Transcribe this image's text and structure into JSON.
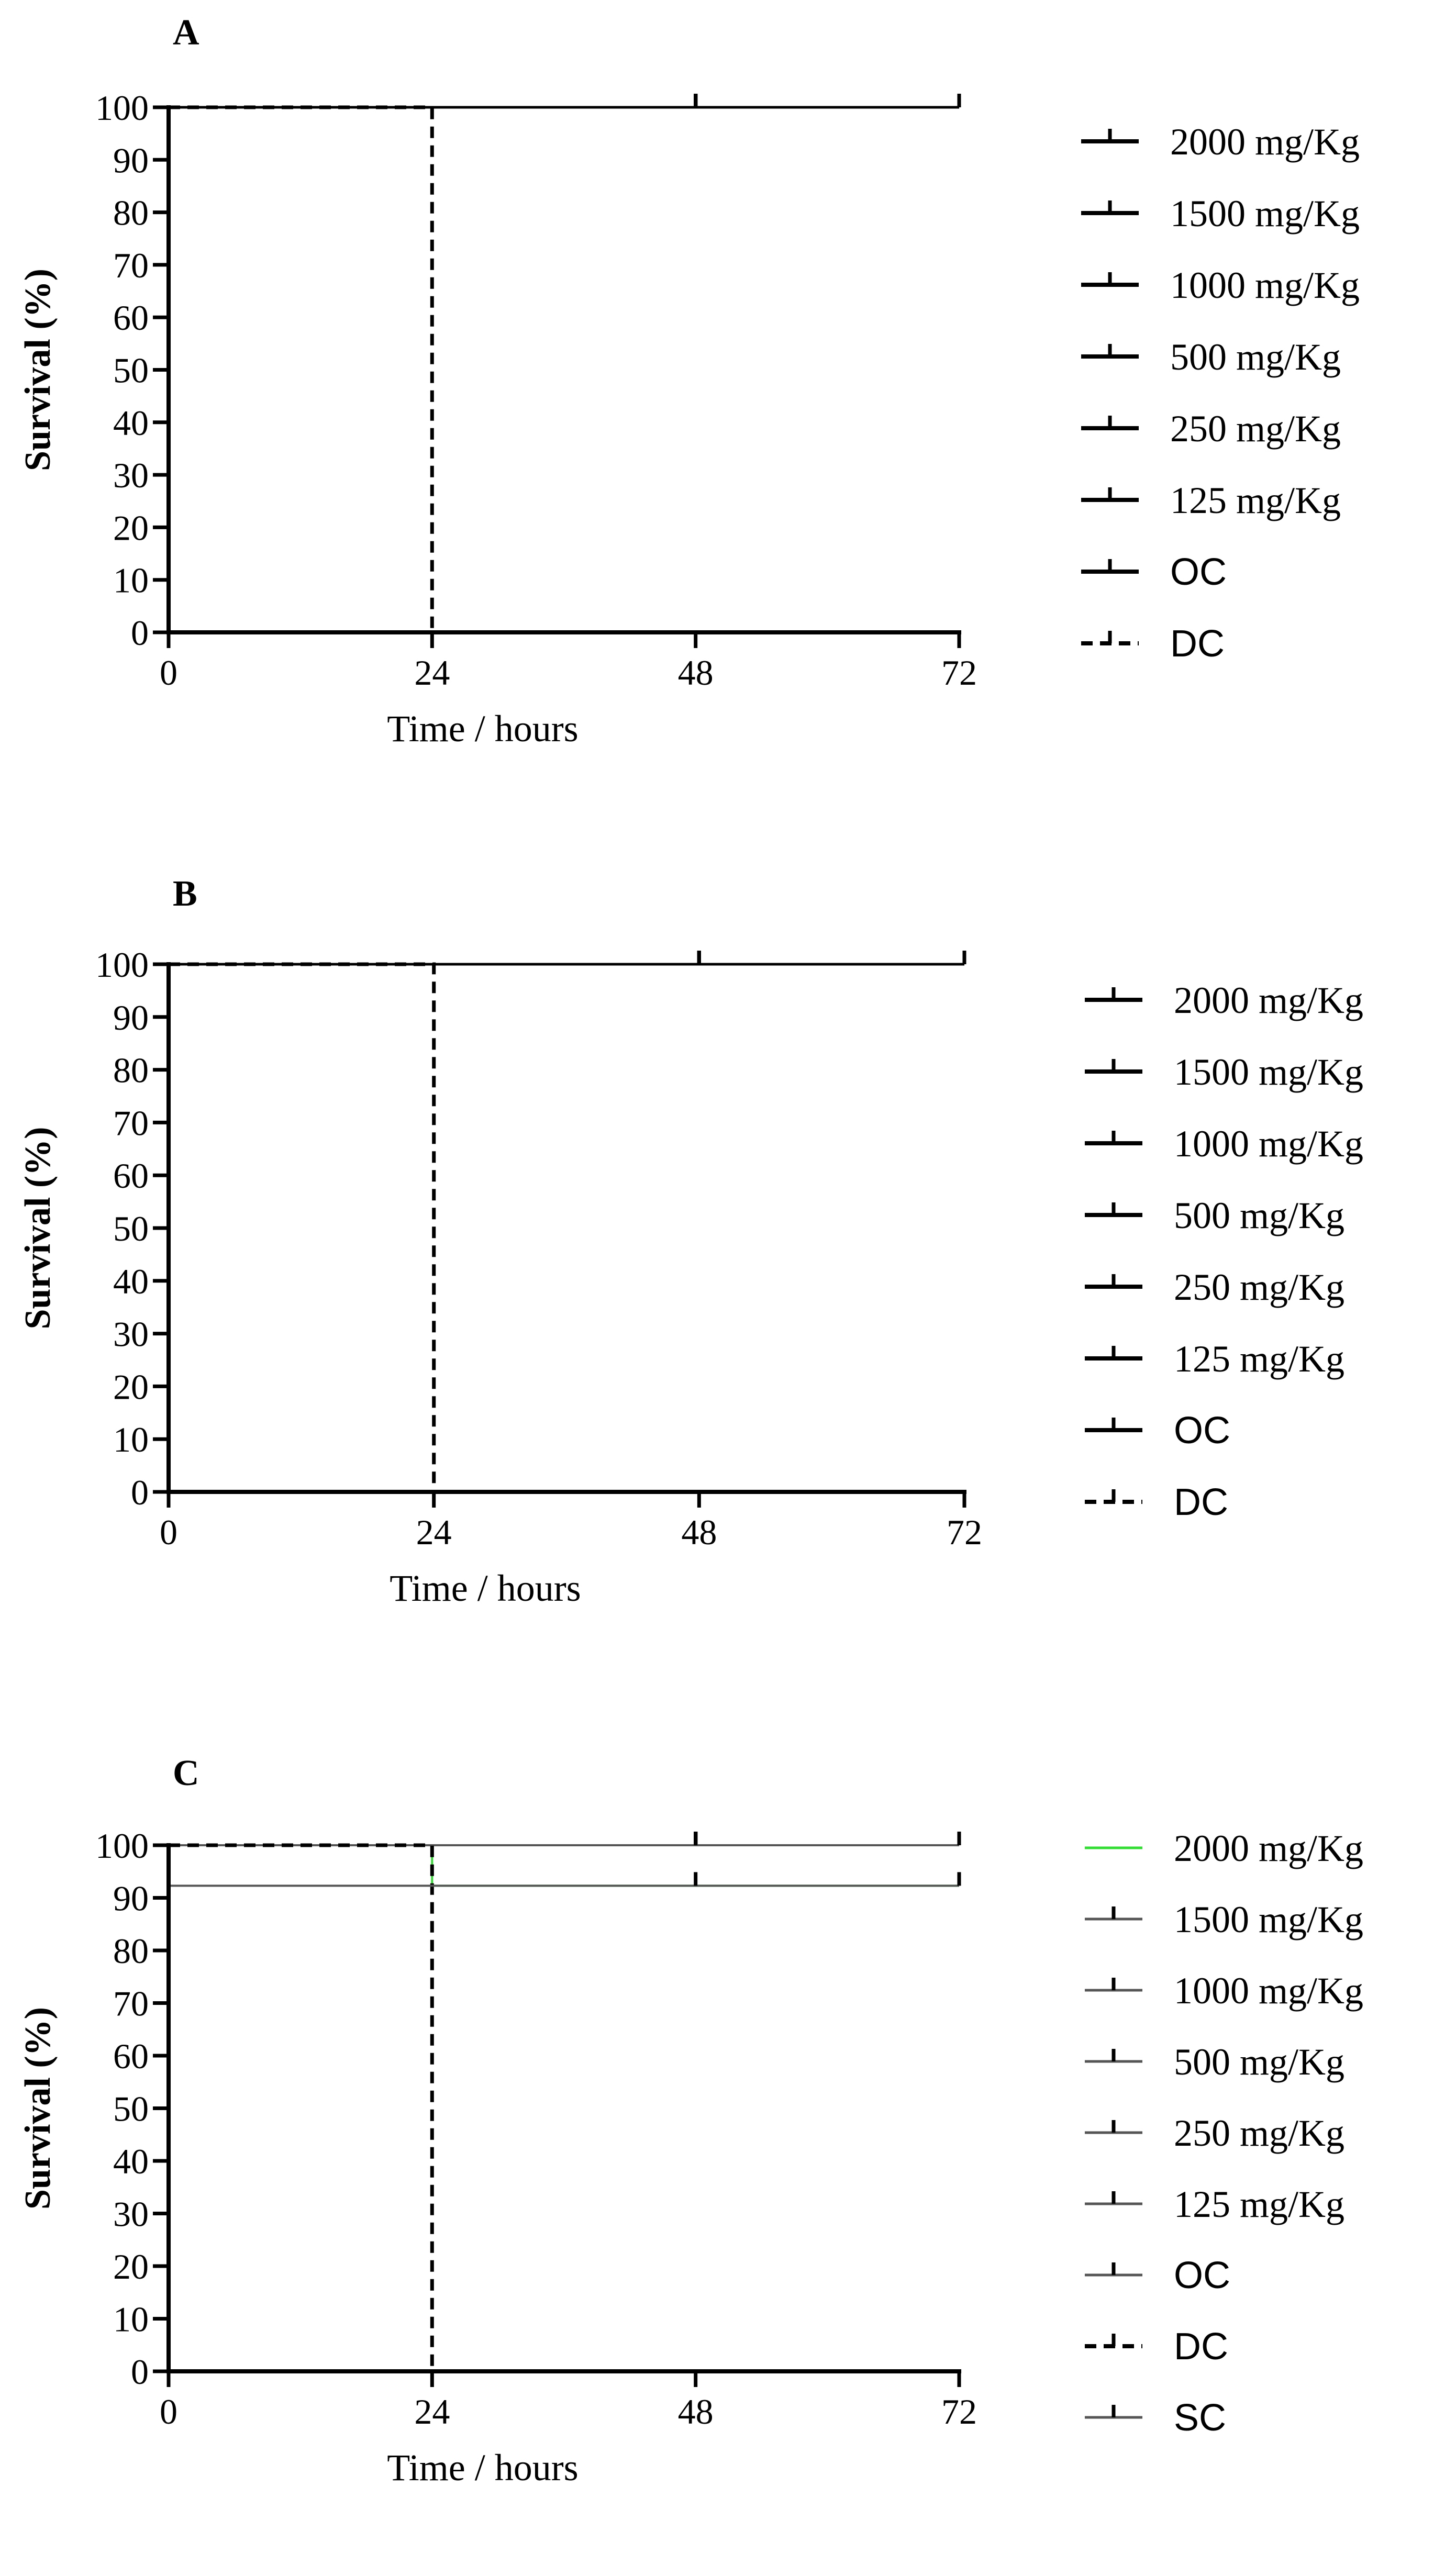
{
  "chart_data": [
    {
      "type": "line",
      "panel": "A",
      "xlabel": "Time / hours",
      "ylabel": "Survival (%)",
      "xlim": [
        0,
        72
      ],
      "ylim": [
        0,
        100
      ],
      "xticks": [
        0,
        24,
        48,
        72
      ],
      "yticks": [
        0,
        10,
        20,
        30,
        40,
        50,
        60,
        70,
        80,
        90,
        100
      ],
      "series": [
        {
          "name": "2000 mg/Kg",
          "style": "solid",
          "color": "#000000",
          "points": [
            [
              0,
              100
            ],
            [
              72,
              100
            ]
          ],
          "censor": [
            48,
            72
          ]
        },
        {
          "name": "1500 mg/Kg",
          "style": "solid",
          "color": "#000000",
          "points": [
            [
              0,
              100
            ],
            [
              72,
              100
            ]
          ],
          "censor": [
            48,
            72
          ]
        },
        {
          "name": "1000 mg/Kg",
          "style": "solid",
          "color": "#000000",
          "points": [
            [
              0,
              100
            ],
            [
              72,
              100
            ]
          ],
          "censor": [
            48,
            72
          ]
        },
        {
          "name": "500 mg/Kg",
          "style": "solid",
          "color": "#000000",
          "points": [
            [
              0,
              100
            ],
            [
              72,
              100
            ]
          ],
          "censor": [
            48,
            72
          ]
        },
        {
          "name": "250 mg/Kg",
          "style": "solid",
          "color": "#000000",
          "points": [
            [
              0,
              100
            ],
            [
              72,
              100
            ]
          ],
          "censor": [
            48,
            72
          ]
        },
        {
          "name": "125 mg/Kg",
          "style": "solid",
          "color": "#000000",
          "points": [
            [
              0,
              100
            ],
            [
              72,
              100
            ]
          ],
          "censor": [
            48,
            72
          ]
        },
        {
          "name": "OC",
          "style": "solid",
          "color": "#000000",
          "points": [
            [
              0,
              100
            ],
            [
              72,
              100
            ]
          ],
          "censor": [
            48,
            72
          ]
        },
        {
          "name": "DC",
          "style": "dashed",
          "color": "#000000",
          "points": [
            [
              0,
              100
            ],
            [
              24,
              100
            ],
            [
              24,
              0
            ],
            [
              72,
              0
            ]
          ],
          "censor": []
        }
      ]
    },
    {
      "type": "line",
      "panel": "B",
      "xlabel": "Time / hours",
      "ylabel": "Survival (%)",
      "xlim": [
        0,
        72
      ],
      "ylim": [
        0,
        100
      ],
      "xticks": [
        0,
        24,
        48,
        72
      ],
      "yticks": [
        0,
        10,
        20,
        30,
        40,
        50,
        60,
        70,
        80,
        90,
        100
      ],
      "series": [
        {
          "name": "2000 mg/Kg",
          "style": "solid",
          "color": "#000000",
          "points": [
            [
              0,
              100
            ],
            [
              72,
              100
            ]
          ],
          "censor": [
            48,
            72
          ]
        },
        {
          "name": "1500 mg/Kg",
          "style": "solid",
          "color": "#000000",
          "points": [
            [
              0,
              100
            ],
            [
              72,
              100
            ]
          ],
          "censor": [
            48,
            72
          ]
        },
        {
          "name": "1000 mg/Kg",
          "style": "solid",
          "color": "#000000",
          "points": [
            [
              0,
              100
            ],
            [
              72,
              100
            ]
          ],
          "censor": [
            48,
            72
          ]
        },
        {
          "name": "500 mg/Kg",
          "style": "solid",
          "color": "#000000",
          "points": [
            [
              0,
              100
            ],
            [
              72,
              100
            ]
          ],
          "censor": [
            48,
            72
          ]
        },
        {
          "name": "250 mg/Kg",
          "style": "solid",
          "color": "#000000",
          "points": [
            [
              0,
              100
            ],
            [
              72,
              100
            ]
          ],
          "censor": [
            48,
            72
          ]
        },
        {
          "name": "125 mg/Kg",
          "style": "solid",
          "color": "#000000",
          "points": [
            [
              0,
              100
            ],
            [
              72,
              100
            ]
          ],
          "censor": [
            48,
            72
          ]
        },
        {
          "name": "OC",
          "style": "solid",
          "color": "#000000",
          "points": [
            [
              0,
              100
            ],
            [
              72,
              100
            ]
          ],
          "censor": [
            48,
            72
          ]
        },
        {
          "name": "DC",
          "style": "dashed",
          "color": "#000000",
          "points": [
            [
              0,
              100
            ],
            [
              24,
              100
            ],
            [
              24,
              0
            ],
            [
              72,
              0
            ]
          ],
          "censor": []
        }
      ]
    },
    {
      "type": "line",
      "panel": "C",
      "xlabel": "Time / hours",
      "ylabel": "Survival (%)",
      "xlim": [
        0,
        72
      ],
      "ylim": [
        0,
        100
      ],
      "xticks": [
        0,
        24,
        48,
        72
      ],
      "yticks": [
        0,
        10,
        20,
        30,
        40,
        50,
        60,
        70,
        80,
        90,
        100
      ],
      "series": [
        {
          "name": "2000 mg/Kg",
          "style": "solid",
          "color": "#33dd33",
          "points": [
            [
              0,
              100
            ],
            [
              24,
              100
            ],
            [
              24,
              92.3
            ],
            [
              72,
              92.3
            ]
          ],
          "censor": []
        },
        {
          "name": "1500 mg/Kg",
          "style": "solid",
          "color": "#555555",
          "points": [
            [
              0,
              100
            ],
            [
              72,
              100
            ]
          ],
          "censor": [
            48,
            72
          ]
        },
        {
          "name": "1000 mg/Kg",
          "style": "solid",
          "color": "#555555",
          "points": [
            [
              0,
              100
            ],
            [
              72,
              100
            ]
          ],
          "censor": [
            48,
            72
          ]
        },
        {
          "name": "500 mg/Kg",
          "style": "solid",
          "color": "#555555",
          "points": [
            [
              0,
              100
            ],
            [
              72,
              100
            ]
          ],
          "censor": [
            48,
            72
          ]
        },
        {
          "name": "250 mg/Kg",
          "style": "solid",
          "color": "#555555",
          "points": [
            [
              0,
              100
            ],
            [
              72,
              100
            ]
          ],
          "censor": [
            48,
            72
          ]
        },
        {
          "name": "125 mg/Kg",
          "style": "solid",
          "color": "#555555",
          "points": [
            [
              0,
              100
            ],
            [
              72,
              100
            ]
          ],
          "censor": [
            48,
            72
          ]
        },
        {
          "name": "OC",
          "style": "solid",
          "color": "#555555",
          "points": [
            [
              0,
              100
            ],
            [
              72,
              100
            ]
          ],
          "censor": [
            48,
            72
          ]
        },
        {
          "name": "DC",
          "style": "dashed",
          "color": "#000000",
          "points": [
            [
              0,
              100
            ],
            [
              24,
              100
            ],
            [
              24,
              0
            ],
            [
              72,
              0
            ]
          ],
          "censor": []
        },
        {
          "name": "SC",
          "style": "solid",
          "color": "#555555",
          "points": [
            [
              0,
              92.3
            ],
            [
              72,
              92.3
            ]
          ],
          "censor": [
            48,
            72
          ]
        }
      ]
    }
  ]
}
